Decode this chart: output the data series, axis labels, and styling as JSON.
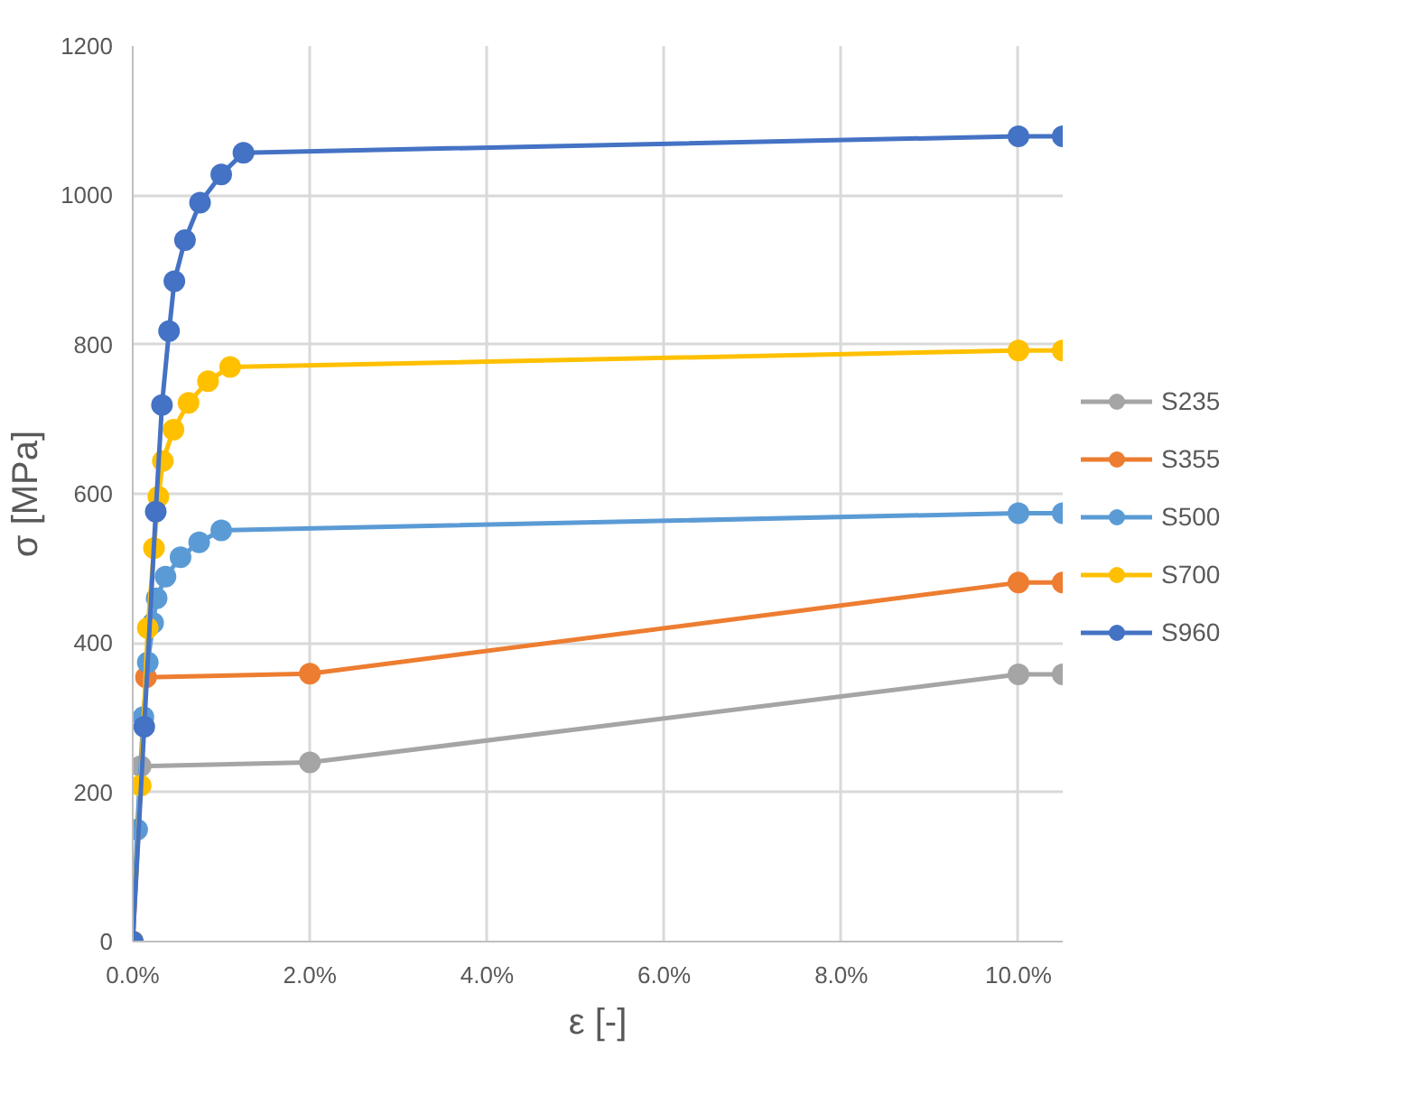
{
  "chart_data": {
    "type": "line",
    "xlabel": "ε [-]",
    "ylabel": "σ [MPa]",
    "xlim": [
      0,
      0.105
    ],
    "ylim": [
      0,
      1200
    ],
    "xticks": [
      {
        "value": 0,
        "label": "0.0%"
      },
      {
        "value": 0.02,
        "label": "2.0%"
      },
      {
        "value": 0.04,
        "label": "4.0%"
      },
      {
        "value": 0.06,
        "label": "6.0%"
      },
      {
        "value": 0.08,
        "label": "8.0%"
      },
      {
        "value": 0.1,
        "label": "10.0%"
      }
    ],
    "yticks": [
      0,
      200,
      400,
      600,
      800,
      1000,
      1200
    ],
    "grid": true,
    "legend": "right",
    "marker": "circle",
    "line_style": "solid",
    "series": [
      {
        "name": "S235",
        "color": "#a5a5a5",
        "x": [
          0,
          0.0009,
          0.02,
          0.1,
          0.105
        ],
        "values": [
          0,
          235,
          240,
          358,
          358
        ]
      },
      {
        "name": "S355",
        "color": "#ed7d31",
        "x": [
          0,
          0.0015,
          0.02,
          0.1,
          0.105
        ],
        "values": [
          0,
          354,
          359,
          481,
          481
        ]
      },
      {
        "name": "S500",
        "color": "#5b9bd5",
        "x": [
          0,
          0.0005,
          0.0012,
          0.0017,
          0.0023,
          0.0027,
          0.0037,
          0.0054,
          0.0075,
          0.01,
          0.1,
          0.105
        ],
        "values": [
          0,
          150,
          301,
          374,
          427,
          460,
          489,
          515,
          535,
          551,
          574,
          574
        ]
      },
      {
        "name": "S700",
        "color": "#ffc000",
        "x": [
          0,
          0.0009,
          0.0017,
          0.0024,
          0.0029,
          0.0034,
          0.0046,
          0.0063,
          0.0085,
          0.011,
          0.1,
          0.105
        ],
        "values": [
          0,
          209,
          420,
          527,
          596,
          644,
          686,
          722,
          751,
          770,
          792,
          792
        ]
      },
      {
        "name": "S960",
        "color": "#4472c4",
        "x": [
          0,
          0.0013,
          0.0026,
          0.0033,
          0.0041,
          0.0047,
          0.0059,
          0.0076,
          0.01,
          0.0125,
          0.1,
          0.105
        ],
        "values": [
          0,
          288,
          576,
          719,
          818,
          885,
          940,
          990,
          1028,
          1057,
          1079,
          1079
        ]
      }
    ]
  }
}
